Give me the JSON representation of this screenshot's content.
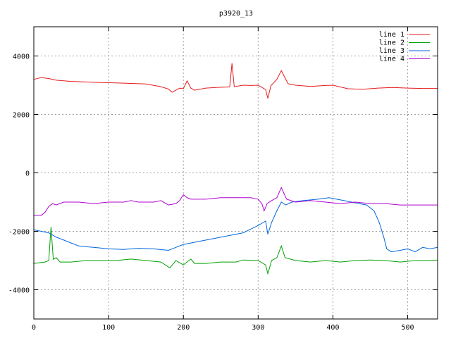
{
  "chart_data": {
    "type": "line",
    "title": "p3920_13",
    "xlabel": "",
    "ylabel": "",
    "xlim": [
      0,
      540
    ],
    "ylim": [
      -5000,
      5000
    ],
    "x_ticks": [
      0,
      100,
      200,
      300,
      400,
      500
    ],
    "y_ticks": [
      -4000,
      -2000,
      0,
      2000,
      4000
    ],
    "grid": true,
    "legend_position": "top-right",
    "series": [
      {
        "name": "line 1",
        "color": "#e41a1c",
        "points": [
          [
            0,
            3200
          ],
          [
            10,
            3260
          ],
          [
            20,
            3230
          ],
          [
            30,
            3170
          ],
          [
            50,
            3130
          ],
          [
            70,
            3110
          ],
          [
            90,
            3090
          ],
          [
            110,
            3080
          ],
          [
            130,
            3060
          ],
          [
            150,
            3040
          ],
          [
            170,
            2950
          ],
          [
            180,
            2870
          ],
          [
            185,
            2760
          ],
          [
            195,
            2900
          ],
          [
            200,
            2880
          ],
          [
            205,
            3150
          ],
          [
            210,
            2900
          ],
          [
            215,
            2830
          ],
          [
            230,
            2900
          ],
          [
            250,
            2930
          ],
          [
            262,
            2940
          ],
          [
            265,
            3750
          ],
          [
            268,
            2950
          ],
          [
            280,
            3000
          ],
          [
            290,
            2990
          ],
          [
            300,
            3000
          ],
          [
            310,
            2850
          ],
          [
            313,
            2550
          ],
          [
            317,
            2980
          ],
          [
            325,
            3200
          ],
          [
            331,
            3500
          ],
          [
            340,
            3050
          ],
          [
            350,
            3000
          ],
          [
            370,
            2960
          ],
          [
            390,
            2990
          ],
          [
            400,
            3000
          ],
          [
            420,
            2880
          ],
          [
            440,
            2860
          ],
          [
            460,
            2900
          ],
          [
            480,
            2920
          ],
          [
            500,
            2900
          ],
          [
            520,
            2890
          ],
          [
            540,
            2890
          ]
        ]
      },
      {
        "name": "line 2",
        "color": "#00a000",
        "points": [
          [
            0,
            -3100
          ],
          [
            15,
            -3050
          ],
          [
            20,
            -3000
          ],
          [
            23,
            -1850
          ],
          [
            26,
            -2960
          ],
          [
            30,
            -2900
          ],
          [
            35,
            -3050
          ],
          [
            50,
            -3050
          ],
          [
            70,
            -3000
          ],
          [
            90,
            -3000
          ],
          [
            110,
            -3000
          ],
          [
            130,
            -2950
          ],
          [
            150,
            -3000
          ],
          [
            170,
            -3050
          ],
          [
            182,
            -3250
          ],
          [
            190,
            -3000
          ],
          [
            200,
            -3150
          ],
          [
            210,
            -2950
          ],
          [
            215,
            -3100
          ],
          [
            230,
            -3100
          ],
          [
            250,
            -3050
          ],
          [
            270,
            -3050
          ],
          [
            280,
            -2980
          ],
          [
            300,
            -3000
          ],
          [
            310,
            -3150
          ],
          [
            313,
            -3450
          ],
          [
            318,
            -3000
          ],
          [
            325,
            -2900
          ],
          [
            331,
            -2500
          ],
          [
            336,
            -2900
          ],
          [
            350,
            -3000
          ],
          [
            370,
            -3050
          ],
          [
            390,
            -3000
          ],
          [
            410,
            -3050
          ],
          [
            430,
            -3000
          ],
          [
            450,
            -2980
          ],
          [
            470,
            -3000
          ],
          [
            490,
            -3050
          ],
          [
            510,
            -3000
          ],
          [
            530,
            -3000
          ],
          [
            540,
            -2980
          ]
        ]
      },
      {
        "name": "line 3",
        "color": "#0066dd",
        "points": [
          [
            0,
            -1950
          ],
          [
            10,
            -2000
          ],
          [
            20,
            -2050
          ],
          [
            30,
            -2200
          ],
          [
            40,
            -2300
          ],
          [
            50,
            -2400
          ],
          [
            60,
            -2500
          ],
          [
            80,
            -2550
          ],
          [
            100,
            -2600
          ],
          [
            120,
            -2620
          ],
          [
            140,
            -2580
          ],
          [
            160,
            -2600
          ],
          [
            180,
            -2650
          ],
          [
            190,
            -2550
          ],
          [
            200,
            -2450
          ],
          [
            210,
            -2400
          ],
          [
            220,
            -2350
          ],
          [
            240,
            -2250
          ],
          [
            260,
            -2150
          ],
          [
            280,
            -2050
          ],
          [
            300,
            -1800
          ],
          [
            310,
            -1650
          ],
          [
            313,
            -2100
          ],
          [
            318,
            -1700
          ],
          [
            325,
            -1300
          ],
          [
            331,
            -1000
          ],
          [
            337,
            -1100
          ],
          [
            345,
            -1000
          ],
          [
            360,
            -950
          ],
          [
            380,
            -900
          ],
          [
            395,
            -850
          ],
          [
            405,
            -900
          ],
          [
            415,
            -950
          ],
          [
            425,
            -1000
          ],
          [
            435,
            -1050
          ],
          [
            445,
            -1100
          ],
          [
            455,
            -1300
          ],
          [
            462,
            -1700
          ],
          [
            468,
            -2200
          ],
          [
            472,
            -2600
          ],
          [
            478,
            -2700
          ],
          [
            490,
            -2650
          ],
          [
            500,
            -2600
          ],
          [
            510,
            -2700
          ],
          [
            520,
            -2550
          ],
          [
            530,
            -2600
          ],
          [
            540,
            -2550
          ]
        ]
      },
      {
        "name": "line 4",
        "color": "#b000d0",
        "points": [
          [
            0,
            -1450
          ],
          [
            10,
            -1450
          ],
          [
            15,
            -1350
          ],
          [
            20,
            -1150
          ],
          [
            25,
            -1050
          ],
          [
            30,
            -1100
          ],
          [
            40,
            -1000
          ],
          [
            60,
            -1000
          ],
          [
            80,
            -1050
          ],
          [
            100,
            -1000
          ],
          [
            120,
            -1000
          ],
          [
            130,
            -950
          ],
          [
            140,
            -1000
          ],
          [
            160,
            -1000
          ],
          [
            170,
            -950
          ],
          [
            180,
            -1100
          ],
          [
            190,
            -1050
          ],
          [
            195,
            -950
          ],
          [
            200,
            -750
          ],
          [
            205,
            -850
          ],
          [
            210,
            -900
          ],
          [
            230,
            -900
          ],
          [
            250,
            -850
          ],
          [
            270,
            -850
          ],
          [
            290,
            -850
          ],
          [
            300,
            -900
          ],
          [
            305,
            -1050
          ],
          [
            308,
            -1300
          ],
          [
            312,
            -1050
          ],
          [
            318,
            -950
          ],
          [
            325,
            -850
          ],
          [
            331,
            -500
          ],
          [
            338,
            -900
          ],
          [
            350,
            -1000
          ],
          [
            370,
            -950
          ],
          [
            390,
            -1000
          ],
          [
            410,
            -1050
          ],
          [
            430,
            -1000
          ],
          [
            450,
            -1050
          ],
          [
            470,
            -1050
          ],
          [
            490,
            -1100
          ],
          [
            510,
            -1100
          ],
          [
            530,
            -1100
          ],
          [
            540,
            -1100
          ]
        ]
      }
    ]
  }
}
